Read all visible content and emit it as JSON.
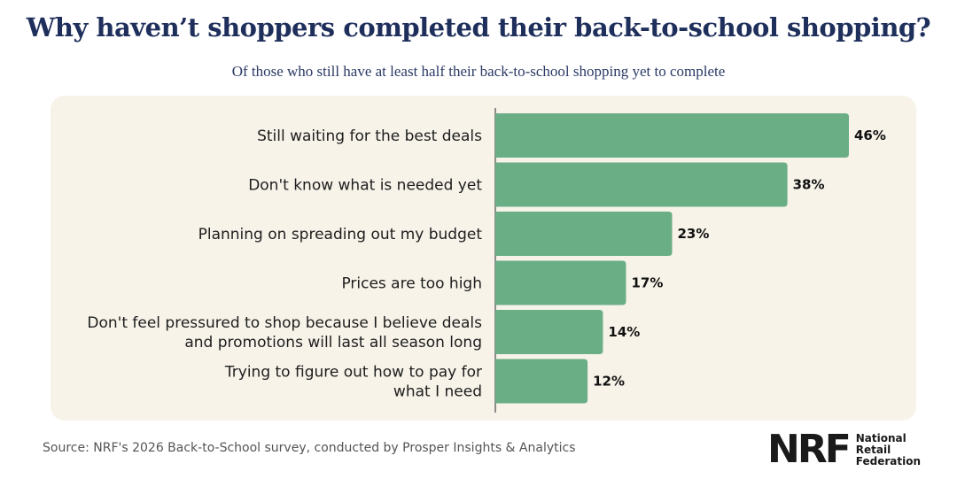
{
  "chart_data": {
    "type": "bar",
    "orientation": "horizontal",
    "title": "Why haven’t shoppers completed their back-to-school shopping?",
    "subtitle": "Of those who still have at least half their back-to-school shopping yet to complete",
    "categories": [
      [
        "Still waiting for the best deals"
      ],
      [
        "Don't know what is needed yet"
      ],
      [
        "Planning on spreading out my budget"
      ],
      [
        "Prices are too high"
      ],
      [
        "Don't feel pressured to shop because I believe deals",
        "and promotions will last all season long"
      ],
      [
        "Trying to figure out how to pay for",
        "what I need"
      ]
    ],
    "values": [
      46,
      38,
      23,
      17,
      14,
      12
    ],
    "value_labels": [
      "46%",
      "38%",
      "23%",
      "17%",
      "14%",
      "12%"
    ],
    "xlim": [
      0,
      46
    ],
    "grid": false,
    "bar_color": "#69ae84"
  },
  "footer": {
    "source": "Source: NRF's 2026 Back-to-School survey, conducted by Prosper Insights & Analytics",
    "logo_mark": "NRF",
    "logo_words": [
      "National",
      "Retail",
      "Federation"
    ]
  }
}
